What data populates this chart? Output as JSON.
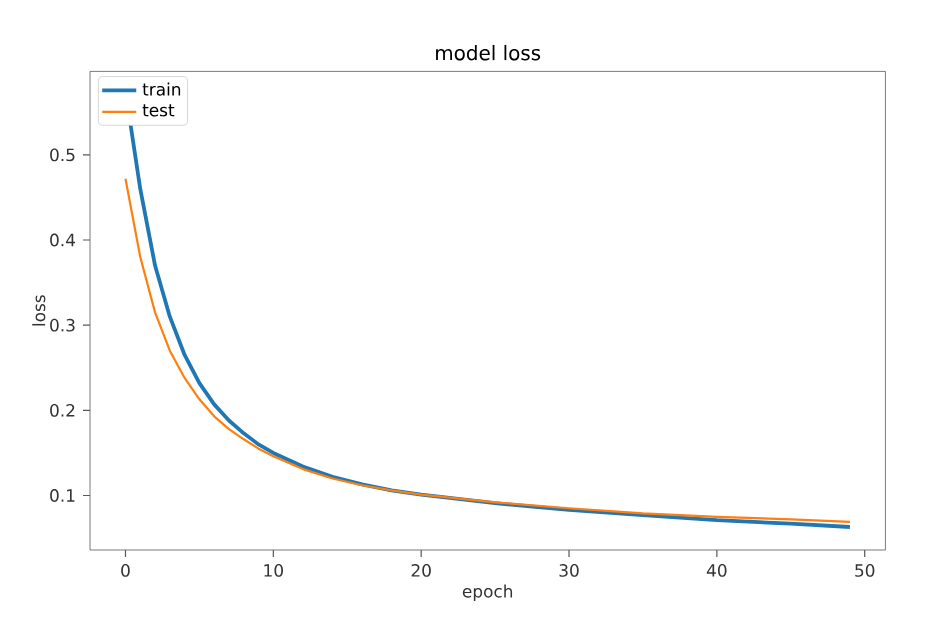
{
  "chart_data": {
    "type": "line",
    "title": "model loss",
    "xlabel": "epoch",
    "ylabel": "loss",
    "xlim": [
      -2.4,
      51.4
    ],
    "ylim": [
      0.036,
      0.598
    ],
    "xticks": [
      0,
      10,
      20,
      30,
      40,
      50
    ],
    "yticks": [
      0.1,
      0.2,
      0.3,
      0.4,
      0.5
    ],
    "grid": false,
    "legend": "top left",
    "series": [
      {
        "name": "train",
        "color": "#1f77b4",
        "x": [
          0,
          1,
          2,
          3,
          4,
          5,
          6,
          7,
          8,
          9,
          10,
          12,
          14,
          16,
          18,
          20,
          25,
          30,
          35,
          40,
          45,
          49
        ],
        "values": [
          0.575,
          0.46,
          0.37,
          0.31,
          0.265,
          0.232,
          0.207,
          0.188,
          0.173,
          0.16,
          0.15,
          0.134,
          0.122,
          0.113,
          0.106,
          0.101,
          0.091,
          0.083,
          0.077,
          0.071,
          0.067,
          0.063
        ]
      },
      {
        "name": "test",
        "color": "#ff7f0e",
        "x": [
          0,
          1,
          2,
          3,
          4,
          5,
          6,
          7,
          8,
          9,
          10,
          12,
          14,
          16,
          18,
          20,
          25,
          30,
          35,
          40,
          45,
          49
        ],
        "values": [
          0.472,
          0.38,
          0.315,
          0.27,
          0.238,
          0.213,
          0.193,
          0.178,
          0.166,
          0.155,
          0.146,
          0.131,
          0.12,
          0.112,
          0.106,
          0.101,
          0.092,
          0.085,
          0.079,
          0.075,
          0.072,
          0.069
        ]
      }
    ]
  }
}
